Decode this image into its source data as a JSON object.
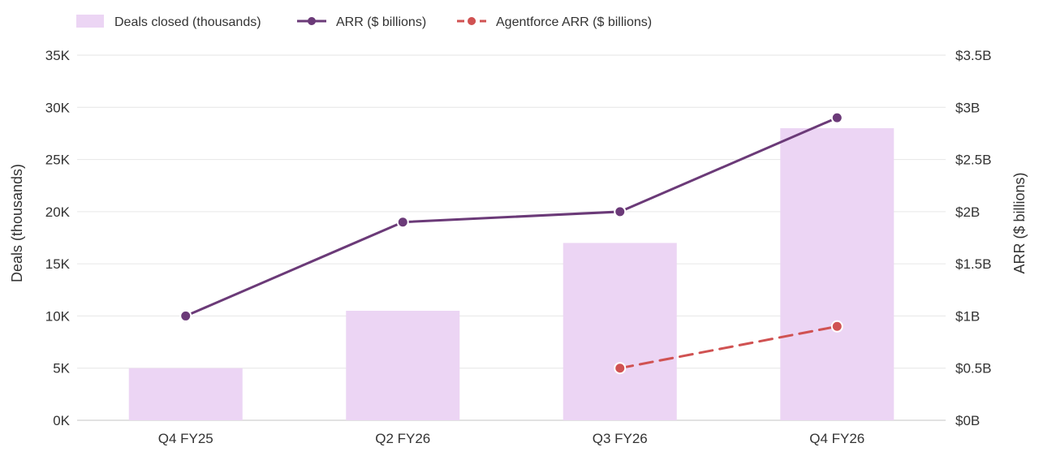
{
  "chart_data": {
    "type": "bar",
    "categories": [
      "Q4 FY25",
      "Q2 FY26",
      "Q3 FY26",
      "Q4 FY26"
    ],
    "series": [
      {
        "name": "Deals closed (thousands)",
        "type": "bar",
        "axis": "left",
        "color": "#ecd5f4",
        "values": [
          5000,
          10500,
          17000,
          28000
        ]
      },
      {
        "name": "ARR ($ billions)",
        "type": "line",
        "axis": "right",
        "color": "#6b3a78",
        "dashed": false,
        "values": [
          1.0,
          1.9,
          2.0,
          2.9
        ]
      },
      {
        "name": "Agentforce ARR ($ billions)",
        "type": "line",
        "axis": "right",
        "color": "#d05252",
        "dashed": true,
        "values": [
          null,
          null,
          0.5,
          0.9
        ]
      }
    ],
    "y_left": {
      "label": "Deals (thousands)",
      "ylim": [
        0,
        35000
      ],
      "ticks": [
        0,
        5000,
        10000,
        15000,
        20000,
        25000,
        30000,
        35000
      ],
      "tick_labels": [
        "0K",
        "5K",
        "10K",
        "15K",
        "20K",
        "25K",
        "30K",
        "35K"
      ]
    },
    "y_right": {
      "label": "ARR ($ billions)",
      "ylim": [
        0,
        3.5
      ],
      "ticks": [
        0,
        0.5,
        1,
        1.5,
        2,
        2.5,
        3,
        3.5
      ],
      "tick_labels": [
        "$0B",
        "$0.5B",
        "$1B",
        "$1.5B",
        "$2B",
        "$2.5B",
        "$3B",
        "$3.5B"
      ]
    },
    "legend_position": "top-left",
    "grid": true
  }
}
